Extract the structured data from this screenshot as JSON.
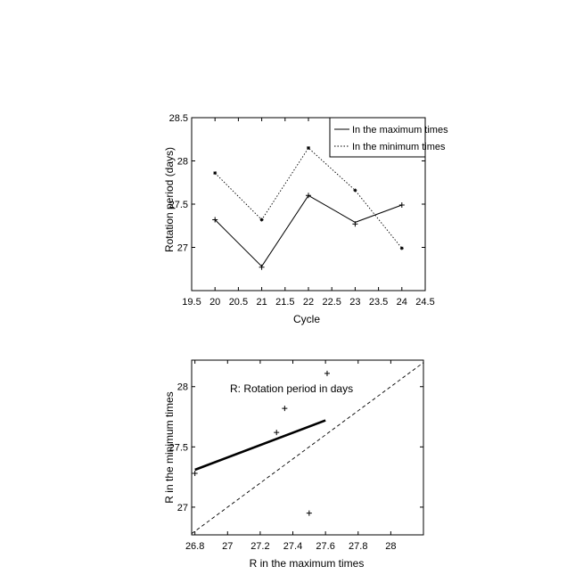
{
  "chart_data": [
    {
      "type": "line",
      "xlabel": "Cycle",
      "ylabel": "Rotation period (days)",
      "xlim": [
        19.5,
        24.5
      ],
      "ylim": [
        26.5,
        28.5
      ],
      "xticks": [
        "19.5",
        "20",
        "20.5",
        "21",
        "21.5",
        "22",
        "22.5",
        "23",
        "23.5",
        "24",
        "24.5"
      ],
      "yticks": [
        "27",
        "27.5",
        "28",
        "28.5"
      ],
      "legend_position": "top-right",
      "series": [
        {
          "name": "In the maximum times",
          "line_style": "solid",
          "marker": "+",
          "x": [
            20,
            21,
            22,
            23,
            24
          ],
          "y": [
            27.32,
            26.78,
            27.6,
            27.29,
            27.49
          ],
          "marker_y": [
            27.32,
            26.77,
            27.6,
            27.27,
            27.49
          ]
        },
        {
          "name": "In the minimum times",
          "line_style": "dotted",
          "marker": "*",
          "x": [
            20,
            21,
            22,
            23,
            24
          ],
          "y": [
            27.86,
            27.32,
            28.15,
            27.66,
            26.99
          ]
        }
      ],
      "grid": false
    },
    {
      "type": "scatter",
      "xlabel": "R in the maximum times",
      "ylabel": "R in the minimum times",
      "annotation": "R: Rotation period in days",
      "xlim": [
        26.78,
        28.2
      ],
      "ylim": [
        26.77,
        28.22
      ],
      "xticks": [
        "26.8",
        "27",
        "27.2",
        "27.4",
        "27.6",
        "27.8",
        "28"
      ],
      "yticks": [
        "27",
        "27.5",
        "28"
      ],
      "points": {
        "marker": "+",
        "x": [
          26.8,
          27.3,
          27.35,
          27.5,
          27.61
        ],
        "y": [
          27.28,
          27.62,
          27.82,
          26.95,
          28.11
        ]
      },
      "fit_line": {
        "style": "solid-thick",
        "x": [
          26.8,
          27.6
        ],
        "y": [
          27.31,
          27.72
        ]
      },
      "identity_line": {
        "style": "dashed",
        "x": [
          26.78,
          28.2
        ],
        "y": [
          26.78,
          28.2
        ]
      },
      "grid": false
    }
  ]
}
